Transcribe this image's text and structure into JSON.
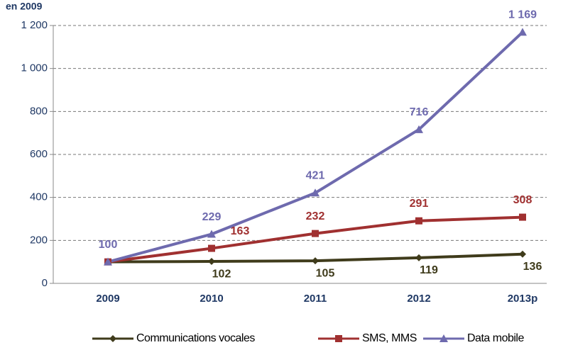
{
  "chart_data": {
    "type": "line",
    "y_axis_label": "en 2009",
    "categories": [
      "2009",
      "2010",
      "2011",
      "2012",
      "2013p"
    ],
    "series": [
      {
        "name": "Communications vocales",
        "color": "#3f3b1b",
        "marker": "diamond",
        "values": [
          100,
          102,
          105,
          119,
          136
        ],
        "value_labels": [
          null,
          "102",
          "105",
          "119",
          "136"
        ]
      },
      {
        "name": "SMS, MMS",
        "color": "#a03030",
        "marker": "square",
        "values": [
          100,
          163,
          232,
          291,
          308
        ],
        "value_labels": [
          null,
          "163",
          "232",
          "291",
          "308"
        ]
      },
      {
        "name": "Data mobile",
        "color": "#6e6aae",
        "marker": "triangle",
        "values": [
          100,
          229,
          421,
          716,
          1169
        ],
        "value_labels": [
          "100",
          "229",
          "421",
          "716",
          "1 169"
        ]
      }
    ],
    "ylim": [
      0,
      1200
    ],
    "yticks": [
      0,
      200,
      400,
      600,
      800,
      {
        "value": 1000,
        "label": "1 000"
      },
      {
        "value": 1200,
        "label": "1 200"
      }
    ],
    "grid": true,
    "legend": "bottom"
  }
}
